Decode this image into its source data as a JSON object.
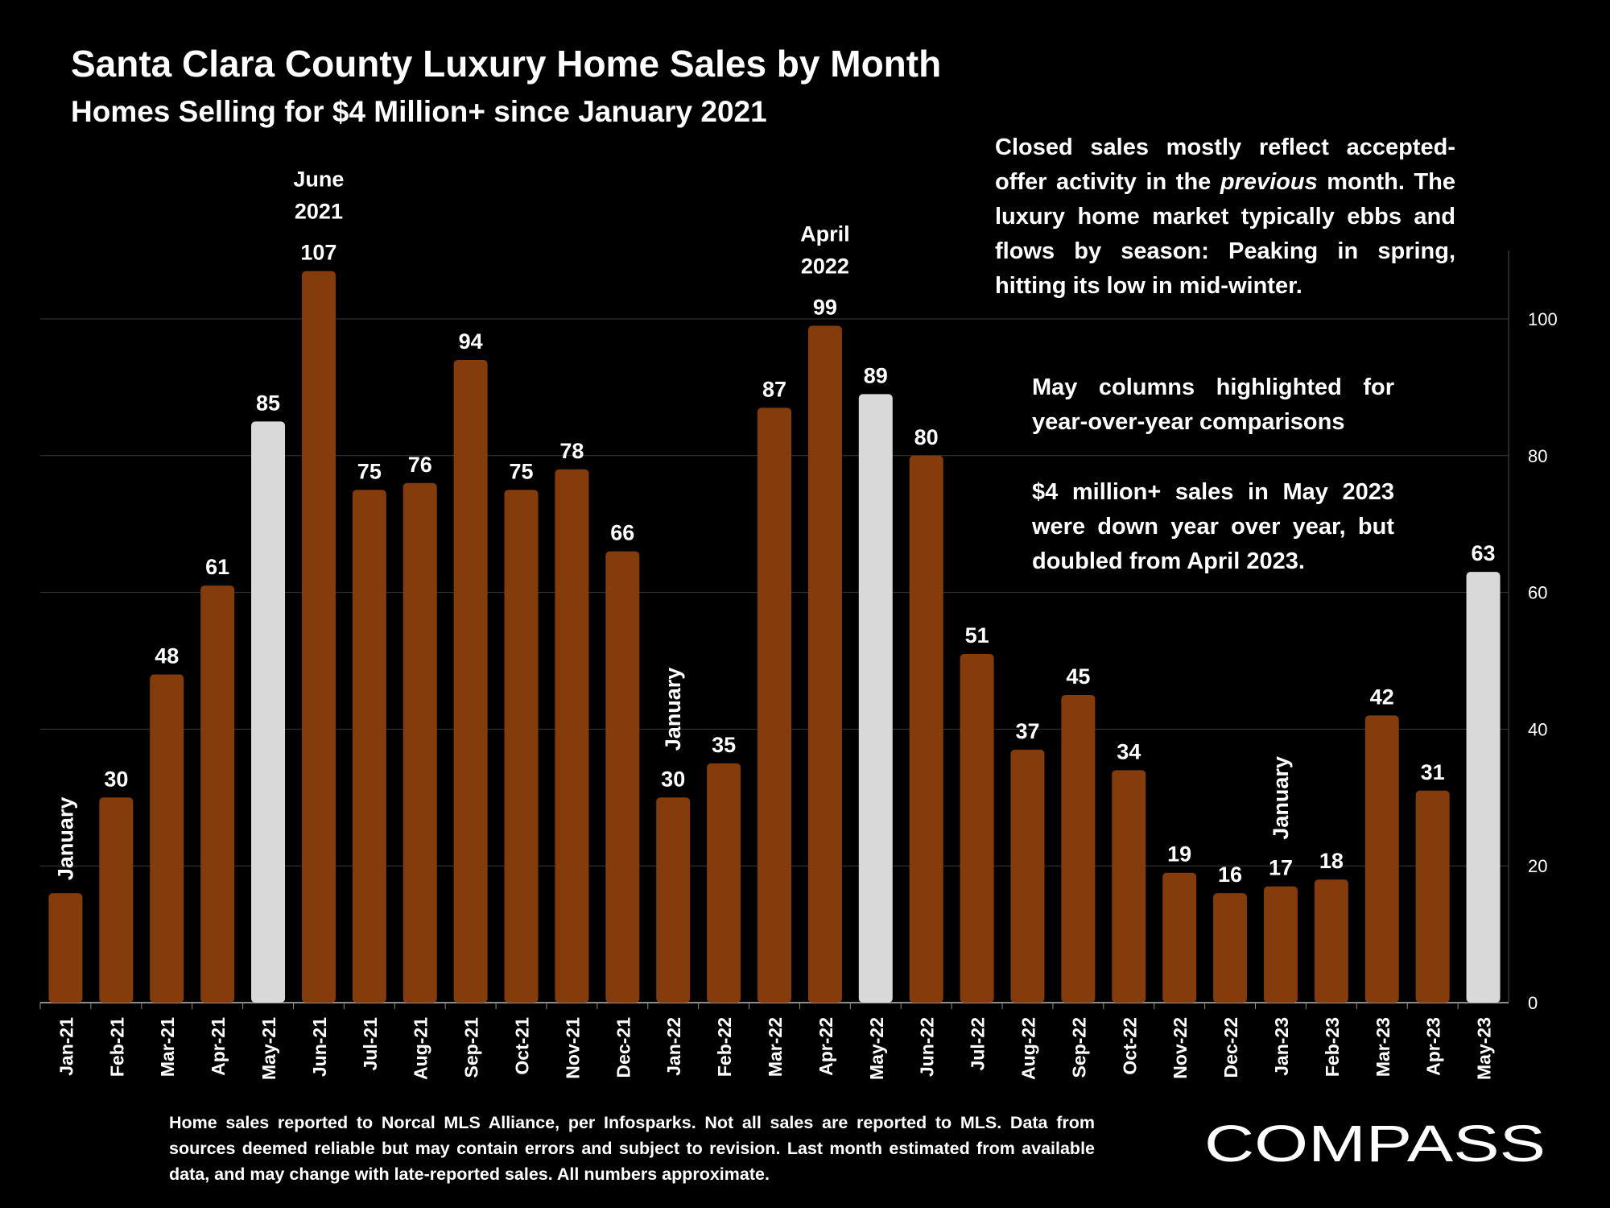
{
  "title": "Santa Clara County Luxury Home Sales by Month",
  "subtitle": "Homes Selling for $4 Million+ since January 2021",
  "notes": {
    "note1_a": "Closed sales mostly reflect accepted-offer activity in the ",
    "note1_em": "previous",
    "note1_b": " month. The luxury home market typically ebbs and flows by season: Peaking in spring, hitting its low in mid-winter.",
    "note2": "May columns highlighted for year-over-year comparisons",
    "note3": "$4 million+ sales in May 2023 were down year over year, but doubled from April 2023."
  },
  "footer": "Home sales reported to Norcal MLS Alliance, per Infosparks. Not all sales are reported to MLS. Data from sources deemed reliable but may contain errors and subject to revision.  Last month estimated from available data, and may change with late-reported sales. All numbers approximate.",
  "logo": "COMPASS",
  "colors": {
    "bar": "#843c0c",
    "highlight": "#d9d9d9",
    "background": "#000000",
    "text": "#ffffff",
    "grid": "#3a3a3a"
  },
  "chart_data": {
    "type": "bar",
    "title": "Santa Clara County Luxury Home Sales by Month",
    "subtitle": "Homes Selling for $4 Million+ since January 2021",
    "categories": [
      "Jan-21",
      "Feb-21",
      "Mar-21",
      "Apr-21",
      "May-21",
      "Jun-21",
      "Jul-21",
      "Aug-21",
      "Sep-21",
      "Oct-21",
      "Nov-21",
      "Dec-21",
      "Jan-22",
      "Feb-22",
      "Mar-22",
      "Apr-22",
      "May-22",
      "Jun-22",
      "Jul-22",
      "Aug-22",
      "Sep-22",
      "Oct-22",
      "Nov-22",
      "Dec-22",
      "Jan-23",
      "Feb-23",
      "Mar-23",
      "Apr-23",
      "May-23"
    ],
    "values": [
      16,
      30,
      48,
      61,
      85,
      107,
      75,
      76,
      94,
      75,
      78,
      66,
      30,
      35,
      87,
      99,
      89,
      80,
      51,
      37,
      45,
      34,
      19,
      16,
      17,
      18,
      42,
      31,
      63
    ],
    "data_labels": [
      "",
      "30",
      "48",
      "61",
      "85",
      "107",
      "75",
      "76",
      "94",
      "75",
      "78",
      "66",
      "30",
      "35",
      "87",
      "99",
      "89",
      "80",
      "51",
      "37",
      "45",
      "34",
      "19",
      "16",
      "17",
      "18",
      "42",
      "31",
      "63"
    ],
    "highlighted_categories": [
      "May-21",
      "May-22",
      "May-23"
    ],
    "y_axis_position": "right",
    "ylim": [
      0,
      110
    ],
    "yticks": [
      0,
      20,
      40,
      60,
      80,
      100
    ],
    "grid": true,
    "legend": "none",
    "annotations": [
      {
        "category": "Jan-21",
        "text": "January",
        "orientation": "vertical"
      },
      {
        "category": "Jan-22",
        "text": "January",
        "orientation": "vertical"
      },
      {
        "category": "Jan-23",
        "text": "January",
        "orientation": "vertical"
      },
      {
        "category": "Jun-21",
        "text": "June 2021",
        "lines": [
          "June",
          "2021"
        ]
      },
      {
        "category": "Apr-22",
        "text": "April 2022",
        "lines": [
          "April",
          "2022"
        ]
      }
    ]
  }
}
